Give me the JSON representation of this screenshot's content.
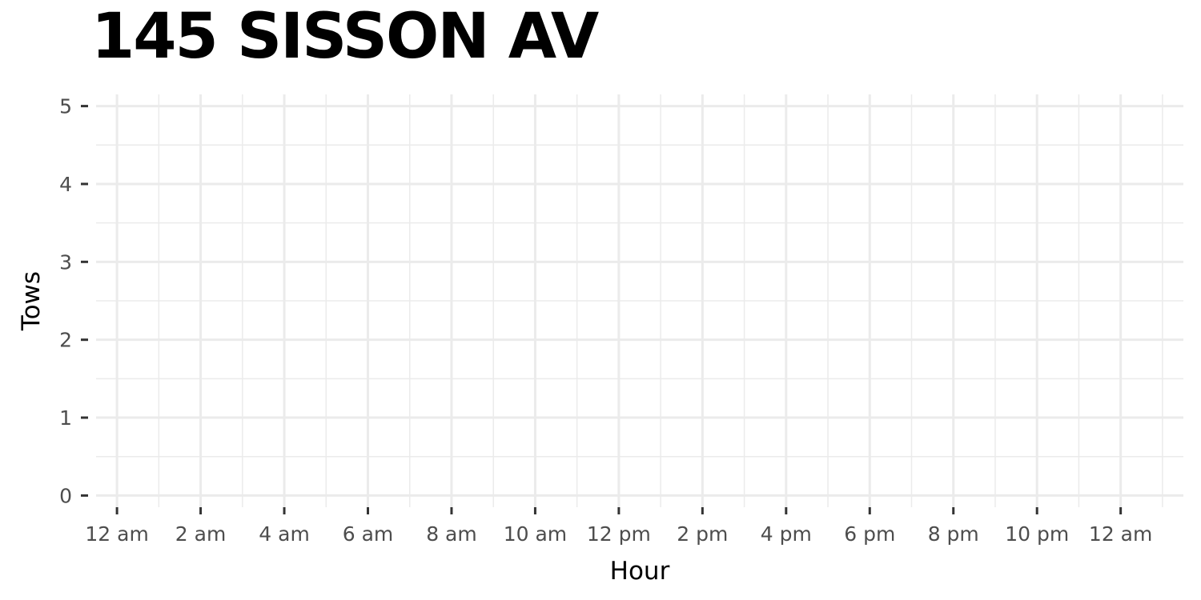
{
  "chart_data": {
    "type": "bar",
    "title": "145 SISSON AV",
    "xlabel": "Hour",
    "ylabel": "Tows",
    "x_ticks": [
      "12 am",
      "2 am",
      "4 am",
      "6 am",
      "8 am",
      "10 am",
      "12 pm",
      "2 pm",
      "4 pm",
      "6 pm",
      "8 pm",
      "10 pm",
      "12 am"
    ],
    "y_ticks": [
      "0",
      "1",
      "2",
      "3",
      "4",
      "5"
    ],
    "xlim": [
      -0.5,
      25.5
    ],
    "ylim": [
      -0.15,
      5.15
    ],
    "values": [],
    "grid": true,
    "grid_color": "#ebebeb",
    "background": "#ffffff"
  }
}
